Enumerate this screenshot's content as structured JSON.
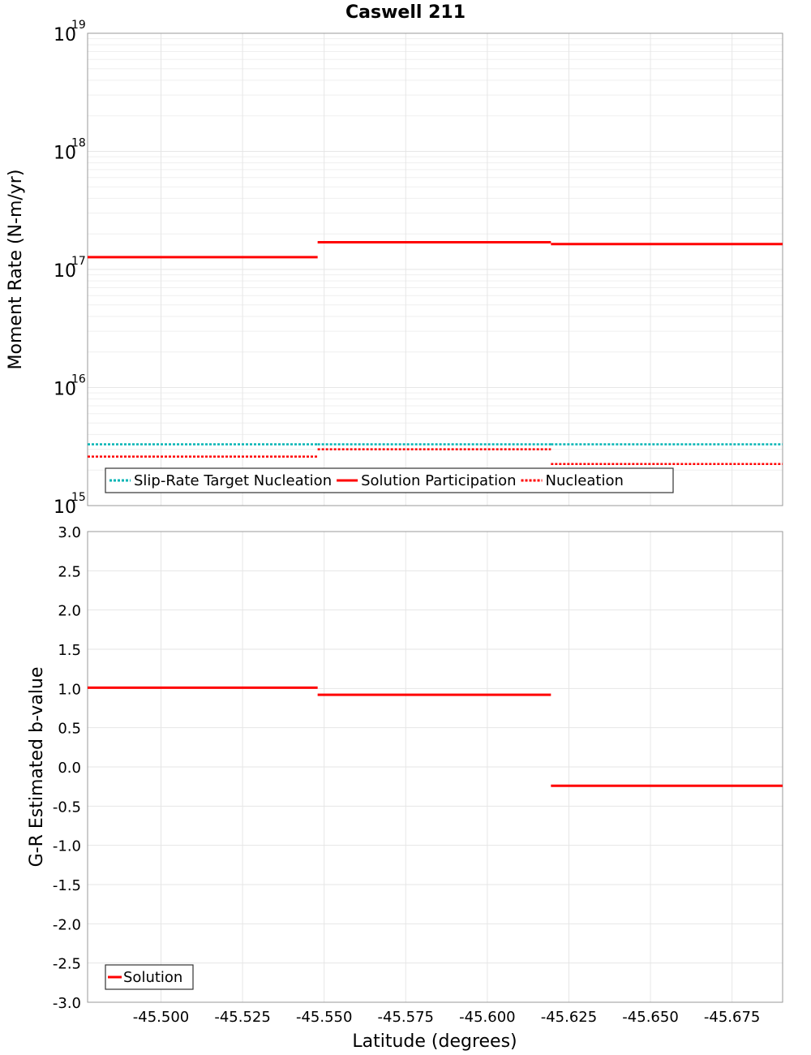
{
  "title": "Caswell 211",
  "chart_data": [
    {
      "type": "line",
      "subtype": "step",
      "yscale": "log",
      "ylabel": "Moment Rate (N-m/yr)",
      "ylim": [
        1000000000000000.0,
        1e+19
      ],
      "ytick_base": "10",
      "yticks": [
        {
          "value": 1000000000000000.0,
          "exp": "15"
        },
        {
          "value": 1e+16,
          "exp": "16"
        },
        {
          "value": 1e+17,
          "exp": "17"
        },
        {
          "value": 1e+18,
          "exp": "18"
        },
        {
          "value": 1e+19,
          "exp": "19"
        }
      ],
      "xlim": [
        -45.4775,
        -45.6905
      ],
      "series": [
        {
          "name": "Slip-Rate Target Nucleation",
          "color": "#00b4b4",
          "style": "dotted",
          "segments": [
            {
              "x0": -45.4775,
              "x1": -45.548,
              "y": 3300000000000000.0
            },
            {
              "x0": -45.548,
              "x1": -45.6195,
              "y": 3300000000000000.0
            },
            {
              "x0": -45.6195,
              "x1": -45.6905,
              "y": 3300000000000000.0
            }
          ]
        },
        {
          "name": "Solution Participation",
          "color": "#ff0000",
          "style": "solid",
          "segments": [
            {
              "x0": -45.4775,
              "x1": -45.548,
              "y": 1.27e+17
            },
            {
              "x0": -45.548,
              "x1": -45.6195,
              "y": 1.7e+17
            },
            {
              "x0": -45.6195,
              "x1": -45.6905,
              "y": 1.64e+17
            }
          ]
        },
        {
          "name": "Nucleation",
          "color": "#ff0000",
          "style": "dotted",
          "segments": [
            {
              "x0": -45.4775,
              "x1": -45.548,
              "y": 2600000000000000.0
            },
            {
              "x0": -45.548,
              "x1": -45.6195,
              "y": 3000000000000000.0
            },
            {
              "x0": -45.6195,
              "x1": -45.6905,
              "y": 2250000000000000.0
            }
          ]
        }
      ],
      "legend": [
        "Slip-Rate Target Nucleation",
        "Solution Participation",
        "Nucleation"
      ],
      "legend_position": "bottom-left",
      "grid": true
    },
    {
      "type": "line",
      "subtype": "step",
      "ylabel": "G-R Estimated b-value",
      "xlabel": "Latitude (degrees)",
      "ylim": [
        -3.0,
        3.0
      ],
      "yticks": [
        "3.0",
        "2.5",
        "2.0",
        "1.5",
        "1.0",
        "0.5",
        "0.0",
        "-0.5",
        "-1.0",
        "-1.5",
        "-2.0",
        "-2.5",
        "-3.0"
      ],
      "xlim": [
        -45.4775,
        -45.6905
      ],
      "xticks": [
        "-45.500",
        "-45.525",
        "-45.550",
        "-45.575",
        "-45.600",
        "-45.625",
        "-45.650",
        "-45.675"
      ],
      "series": [
        {
          "name": "Solution",
          "color": "#ff0000",
          "style": "solid",
          "segments": [
            {
              "x0": -45.4775,
              "x1": -45.548,
              "y": 1.01
            },
            {
              "x0": -45.548,
              "x1": -45.6195,
              "y": 0.92
            },
            {
              "x0": -45.6195,
              "x1": -45.6905,
              "y": -0.24
            }
          ]
        }
      ],
      "legend": [
        "Solution"
      ],
      "legend_position": "bottom-left",
      "grid": true
    }
  ]
}
